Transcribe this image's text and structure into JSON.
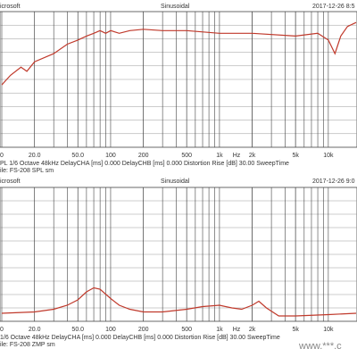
{
  "chart_data": [
    {
      "type": "line",
      "header_left": "icrosoft",
      "header_center": "Sinusoidal",
      "header_right": "2017-12-26 8:5",
      "log_x": true,
      "grid": true,
      "x": [
        10,
        12,
        15,
        17,
        20,
        30,
        40,
        50,
        60,
        70,
        80,
        90,
        100,
        120,
        150,
        200,
        300,
        500,
        1000,
        2000,
        5000,
        8000,
        10000,
        11500,
        13000,
        15000,
        18000
      ],
      "series": [
        {
          "name": "SPL",
          "color": "#c0392b",
          "values": [
            46,
            53,
            59,
            56,
            63,
            69,
            76,
            79,
            82,
            84,
            86,
            84,
            86,
            84,
            86,
            87,
            86,
            86,
            84,
            84,
            82,
            84,
            79,
            69,
            82,
            89,
            92
          ]
        }
      ],
      "xlim": [
        10,
        18000
      ],
      "ylim": [
        0,
        100
      ],
      "xticks": [
        {
          "value": 10,
          "label": "0"
        },
        {
          "value": 20,
          "label": "20.0"
        },
        {
          "value": 50,
          "label": "50.0"
        },
        100,
        200,
        500,
        {
          "value": 1000,
          "label": "1k"
        },
        {
          "value": 2000,
          "label": "2k"
        },
        {
          "value": 5000,
          "label": "5k"
        },
        {
          "value": 10000,
          "label": "10k"
        }
      ],
      "x_label": "Hz",
      "footer": [
        "PL     1/6 Octave    48kHz    DelayCHA [ms] 0.000    DelayCHB [ms] 0.000    Distortion Rise [dB] 30.00    SweepTime",
        "ile: FS-208 SPL sm"
      ]
    },
    {
      "type": "line",
      "header_left": "icrosoft",
      "header_center": "Sinusoidal",
      "header_right": "2017-12-26 9:0",
      "log_x": true,
      "grid": true,
      "x": [
        10,
        20,
        30,
        40,
        50,
        60,
        70,
        80,
        100,
        120,
        150,
        200,
        300,
        500,
        700,
        1000,
        1300,
        1600,
        2000,
        2300,
        2700,
        3500,
        5000,
        10000,
        18000
      ],
      "series": [
        {
          "name": "ZMP",
          "color": "#c0392b",
          "values": [
            6,
            7,
            9,
            12,
            16,
            22,
            25,
            24,
            17,
            12,
            9,
            7,
            7,
            9,
            11,
            12,
            10,
            9,
            12,
            15,
            10,
            4,
            4,
            5,
            6
          ]
        }
      ],
      "xlim": [
        10,
        18000
      ],
      "ylim": [
        0,
        100
      ],
      "xticks": [
        {
          "value": 10,
          "label": "0"
        },
        {
          "value": 20,
          "label": "20.0"
        },
        {
          "value": 50,
          "label": "50.0"
        },
        100,
        200,
        500,
        {
          "value": 1000,
          "label": "1k"
        },
        {
          "value": 2000,
          "label": "2k"
        },
        {
          "value": 5000,
          "label": "5k"
        },
        {
          "value": 10000,
          "label": "10k"
        }
      ],
      "x_label": "Hz",
      "footer": [
        "1/6 Octave    48kHz    DelayCHA [ms] 0.000    DelayCHB [ms] 0.000    Distortion Rise [dB] 30.00    SweepTime",
        "ile: FS-208 ZMP sm"
      ],
      "watermark": "www.***.c"
    }
  ]
}
